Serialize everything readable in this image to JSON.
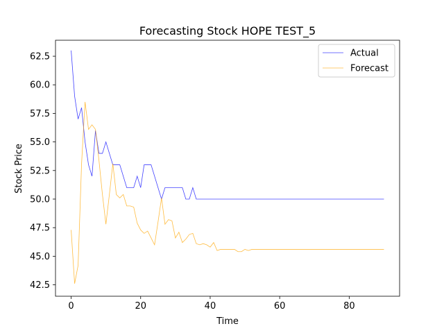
{
  "chart_data": {
    "type": "line",
    "title": "Forecasting Stock HOPE TEST_5",
    "xlabel": "Time",
    "ylabel": "Stock Price",
    "xlim": [
      -4.5,
      94.5
    ],
    "ylim": [
      41.5,
      63.9
    ],
    "xticks": [
      0,
      20,
      40,
      60,
      80
    ],
    "yticks": [
      42.5,
      45.0,
      47.5,
      50.0,
      52.5,
      55.0,
      57.5,
      60.0,
      62.5
    ],
    "ytick_labels": [
      "42.5",
      "45.0",
      "47.5",
      "50.0",
      "52.5",
      "55.0",
      "57.5",
      "60.0",
      "62.5"
    ],
    "grid": false,
    "legend_position": "top-right",
    "series": [
      {
        "name": "Actual",
        "color": "#0000ff",
        "x": [
          0,
          1,
          2,
          3,
          4,
          5,
          6,
          7,
          8,
          9,
          10,
          11,
          12,
          13,
          14,
          15,
          16,
          17,
          18,
          19,
          20,
          21,
          22,
          23,
          24,
          25,
          26,
          27,
          28,
          29,
          30,
          31,
          32,
          33,
          34,
          35,
          36,
          37,
          38,
          39,
          40,
          41,
          42,
          43,
          44,
          45,
          46,
          47,
          48,
          49,
          50,
          51,
          52,
          53,
          54,
          55,
          56,
          57,
          58,
          59,
          60,
          61,
          62,
          63,
          64,
          65,
          66,
          67,
          68,
          69,
          70,
          71,
          72,
          73,
          74,
          75,
          76,
          77,
          78,
          79,
          80,
          81,
          82,
          83,
          84,
          85,
          86,
          87,
          88,
          89,
          90
        ],
        "y": [
          63,
          59,
          57,
          58,
          55,
          53,
          52,
          56,
          54,
          54,
          55,
          54,
          53,
          53,
          53,
          52,
          51,
          51,
          51,
          52,
          51,
          53,
          53,
          53,
          52,
          51,
          50,
          51,
          51,
          51,
          51,
          51,
          51,
          50,
          50,
          51,
          50,
          50,
          50,
          50,
          50,
          50,
          50,
          50,
          50,
          50,
          50,
          50,
          50,
          50,
          50,
          50,
          50,
          50,
          50,
          50,
          50,
          50,
          50,
          50,
          50,
          50,
          50,
          50,
          50,
          50,
          50,
          50,
          50,
          50,
          50,
          50,
          50,
          50,
          50,
          50,
          50,
          50,
          50,
          50,
          50,
          50,
          50,
          50,
          50,
          50,
          50,
          50,
          50,
          50,
          50
        ]
      },
      {
        "name": "Forecast",
        "color": "#ffa500",
        "x": [
          0,
          1,
          2,
          3,
          4,
          5,
          6,
          7,
          8,
          9,
          10,
          11,
          12,
          13,
          14,
          15,
          16,
          17,
          18,
          19,
          20,
          21,
          22,
          23,
          24,
          25,
          26,
          27,
          28,
          29,
          30,
          31,
          32,
          33,
          34,
          35,
          36,
          37,
          38,
          39,
          40,
          41,
          42,
          43,
          44,
          45,
          46,
          47,
          48,
          49,
          50,
          51,
          52,
          53,
          54,
          55,
          56,
          57,
          58,
          59,
          60,
          61,
          62,
          63,
          64,
          65,
          66,
          67,
          68,
          69,
          70,
          71,
          72,
          73,
          74,
          75,
          76,
          77,
          78,
          79,
          80,
          81,
          82,
          83,
          84,
          85,
          86,
          87,
          88,
          89,
          90
        ],
        "y": [
          47.3,
          42.6,
          44.2,
          53.1,
          58.5,
          56.1,
          56.5,
          56.1,
          53.4,
          50.4,
          47.8,
          50.4,
          53.1,
          50.4,
          50.1,
          50.4,
          49.4,
          49.4,
          49.3,
          47.9,
          47.3,
          47.0,
          47.2,
          46.6,
          46.0,
          48.0,
          50.1,
          47.8,
          48.2,
          48.1,
          46.6,
          47.1,
          46.2,
          46.5,
          46.9,
          47.0,
          46.1,
          46.0,
          46.1,
          46.0,
          45.8,
          46.2,
          45.5,
          45.6,
          45.6,
          45.6,
          45.6,
          45.6,
          45.4,
          45.4,
          45.6,
          45.5,
          45.6,
          45.6,
          45.6,
          45.6,
          45.6,
          45.6,
          45.6,
          45.6,
          45.6,
          45.6,
          45.6,
          45.6,
          45.6,
          45.6,
          45.6,
          45.6,
          45.6,
          45.6,
          45.6,
          45.6,
          45.6,
          45.6,
          45.6,
          45.6,
          45.6,
          45.6,
          45.6,
          45.6,
          45.6,
          45.6,
          45.6,
          45.6,
          45.6,
          45.6,
          45.6,
          45.6,
          45.6,
          45.6,
          45.6
        ]
      }
    ]
  }
}
